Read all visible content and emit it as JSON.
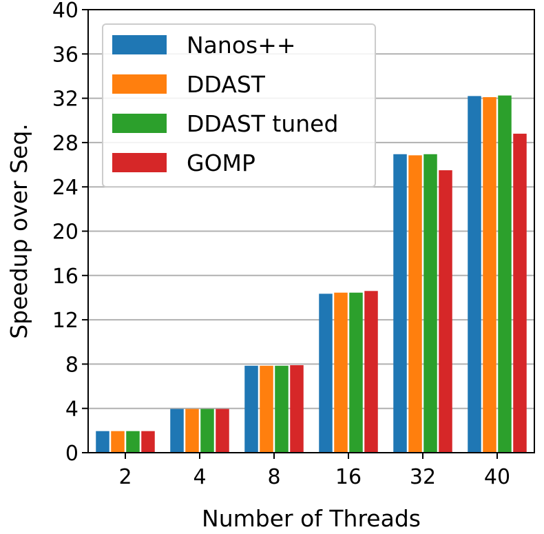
{
  "chart_data": {
    "type": "bar",
    "title": "",
    "xlabel": "Number of Threads",
    "ylabel": "Speedup over Seq.",
    "categories": [
      "2",
      "4",
      "8",
      "16",
      "32",
      "40"
    ],
    "ylim": [
      0,
      40
    ],
    "yticks": [
      0,
      4,
      8,
      12,
      16,
      20,
      24,
      28,
      32,
      36,
      40
    ],
    "grid": "horizontal",
    "legend_position": "top-left",
    "series": [
      {
        "name": "Nanos++",
        "color": "#1f77b4",
        "values": [
          1.95,
          3.95,
          7.85,
          14.35,
          26.95,
          32.2
        ]
      },
      {
        "name": "DDAST",
        "color": "#ff7f0e",
        "values": [
          1.95,
          3.95,
          7.85,
          14.45,
          26.85,
          32.1
        ]
      },
      {
        "name": "DDAST tuned",
        "color": "#2ca02c",
        "values": [
          1.95,
          3.95,
          7.85,
          14.45,
          26.95,
          32.25
        ]
      },
      {
        "name": "GOMP",
        "color": "#d62728",
        "values": [
          1.95,
          3.95,
          7.9,
          14.6,
          25.5,
          28.8
        ]
      }
    ]
  }
}
